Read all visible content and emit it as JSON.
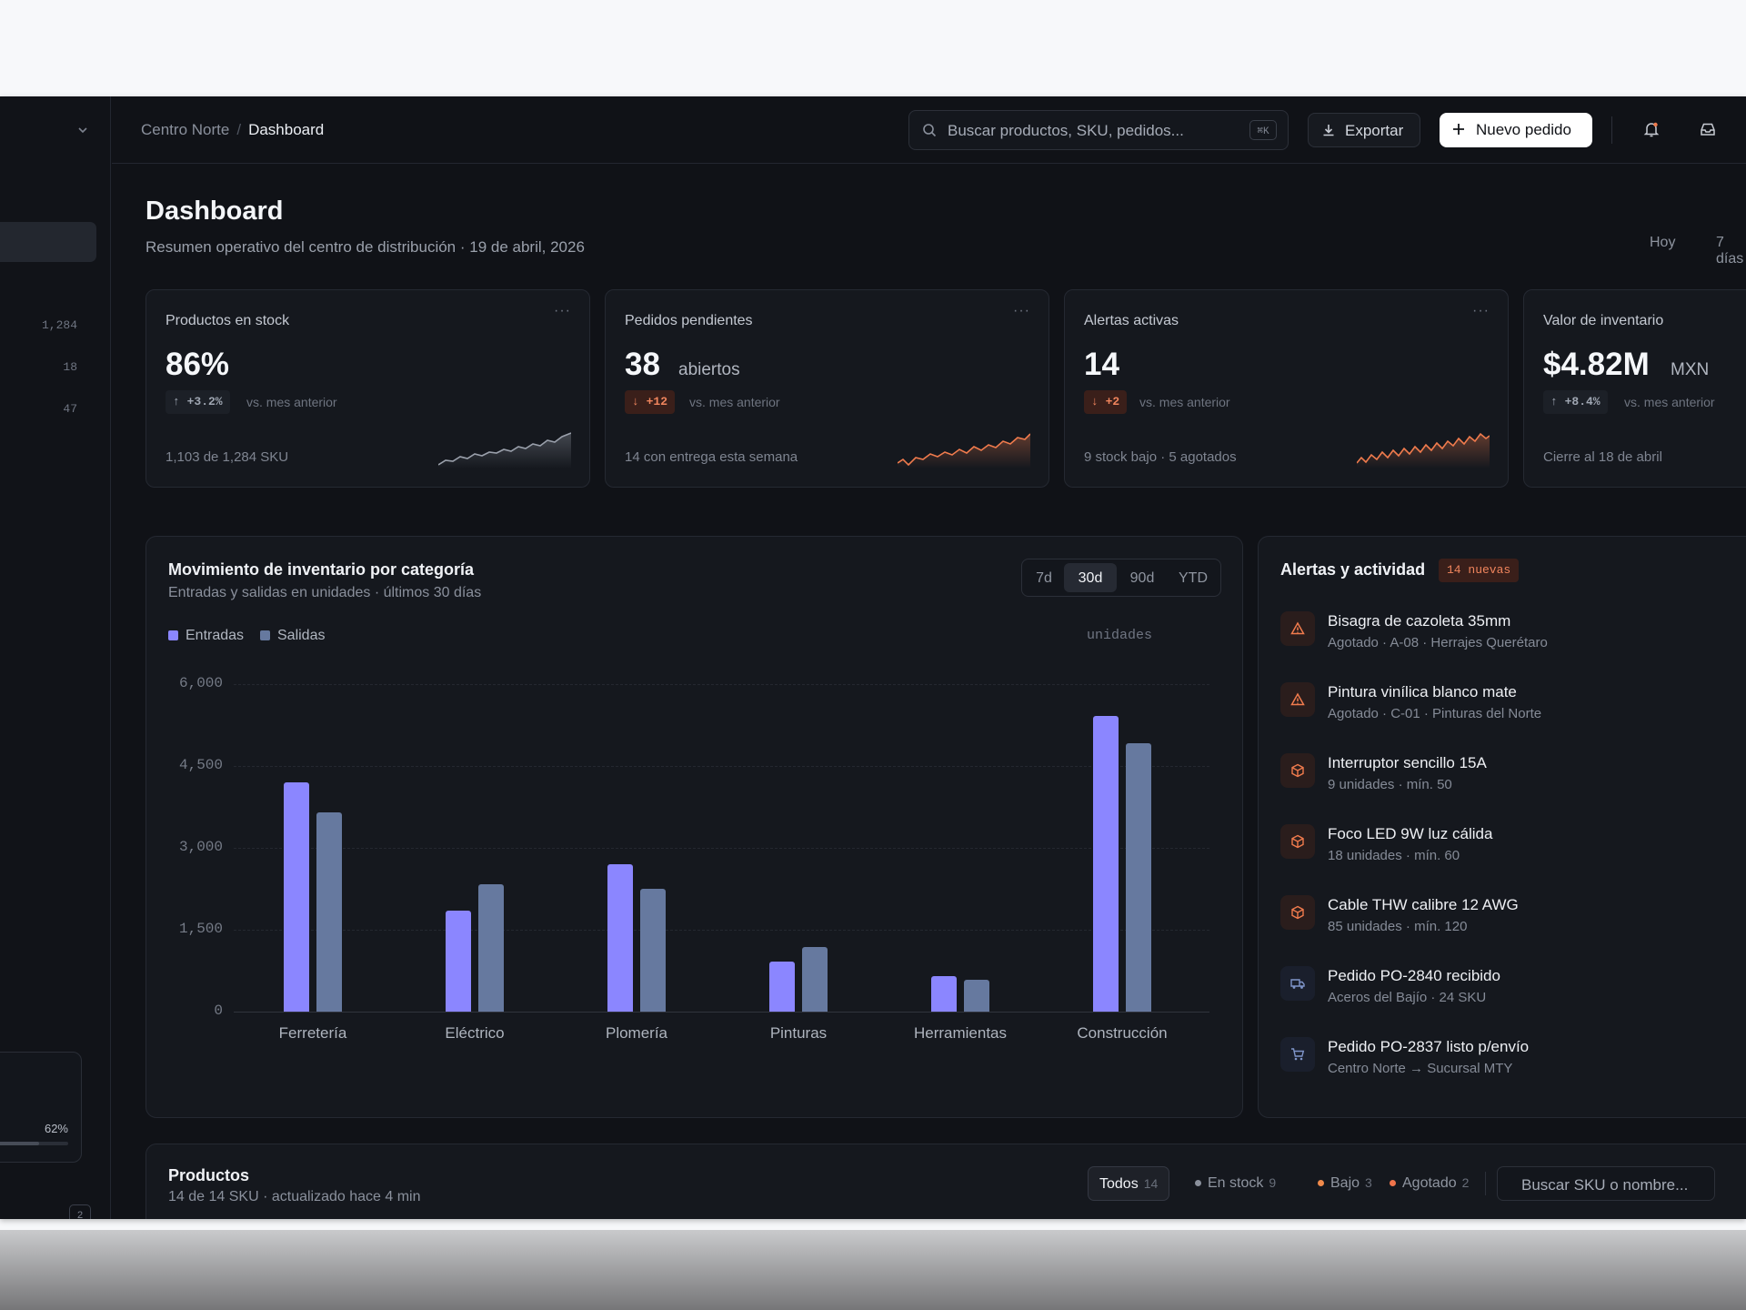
{
  "breadcrumb": {
    "parent": "Centro Norte",
    "separator": "/",
    "current": "Dashboard"
  },
  "search": {
    "placeholder": "Buscar productos, SKU, pedidos...",
    "shortcut": "⌘K"
  },
  "toolbar": {
    "export_label": "Exportar",
    "new_order_label": "Nuevo pedido"
  },
  "sidebar": {
    "counts": [
      "1,284",
      "18",
      "47"
    ],
    "card_percent": "62%",
    "card_progress": 0.62,
    "badge": "2"
  },
  "page": {
    "title": "Dashboard",
    "subtitle": "Resumen operativo del centro de distribución · 19 de abril, 2026"
  },
  "range": {
    "today": "Hoy",
    "week": "7 días"
  },
  "kpis": [
    {
      "label": "Productos en stock",
      "value": "86%",
      "unit": "",
      "delta": "↑ +3.2%",
      "trend": "up",
      "vs": "vs. mes anterior",
      "footer": "1,103 de 1,284 SKU",
      "color": "#9aa0ab"
    },
    {
      "label": "Pedidos pendientes",
      "value": "38",
      "unit": "abiertos",
      "delta": "↓ +12",
      "trend": "bad",
      "vs": "vs. mes anterior",
      "footer": "14 con entrega esta semana",
      "color": "#f07b4d"
    },
    {
      "label": "Alertas activas",
      "value": "14",
      "unit": "",
      "delta": "↓ +2",
      "trend": "bad",
      "vs": "vs. mes anterior",
      "footer": "9 stock bajo · 5 agotados",
      "color": "#f07b4d"
    },
    {
      "label": "Valor de inventario",
      "value": "$4.82M",
      "unit": "MXN",
      "delta": "↑ +8.4%",
      "trend": "up",
      "vs": "vs. mes anterior",
      "footer": "Cierre al 18 de abril",
      "color": "#9aa0ab"
    }
  ],
  "chart": {
    "title": "Movimiento de inventario por categoría",
    "subtitle": "Entradas y salidas en unidades · últimos 30 días",
    "periods": [
      "7d",
      "30d",
      "90d",
      "YTD"
    ],
    "active_period": "30d",
    "units_label": "unidades"
  },
  "chart_data": {
    "type": "bar",
    "categories": [
      "Ferretería",
      "Eléctrico",
      "Plomería",
      "Pinturas",
      "Herramientas",
      "Construcción"
    ],
    "series": [
      {
        "name": "Entradas",
        "values": [
          4200,
          1850,
          2700,
          920,
          650,
          5420
        ],
        "color": "#8b86ff"
      },
      {
        "name": "Salidas",
        "values": [
          3650,
          2330,
          2250,
          1180,
          580,
          4920
        ],
        "color": "#66799f"
      }
    ],
    "yticks": [
      "6,000",
      "4,500",
      "3,000",
      "1,500",
      "0"
    ],
    "ylim": [
      0,
      6000
    ],
    "ylabel": "unidades",
    "grid": true,
    "legend": "top-left"
  },
  "alerts": {
    "title": "Alertas y actividad",
    "badge": "14 nuevas",
    "items": [
      {
        "name": "Bisagra de cazoleta 35mm",
        "meta": "Agotado · A-08 · Herrajes Querétaro",
        "icon": "warning-icon",
        "tone": "orange"
      },
      {
        "name": "Pintura vinílica blanco mate",
        "meta": "Agotado · C-01 · Pinturas del Norte",
        "icon": "warning-icon",
        "tone": "orange"
      },
      {
        "name": "Interruptor sencillo 15A",
        "meta": "9 unidades · mín. 50",
        "icon": "box-icon",
        "tone": "orange"
      },
      {
        "name": "Foco LED 9W luz cálida",
        "meta": "18 unidades · mín. 60",
        "icon": "box-icon",
        "tone": "orange"
      },
      {
        "name": "Cable THW calibre 12 AWG",
        "meta": "85 unidades · mín. 120",
        "icon": "box-icon",
        "tone": "orange"
      },
      {
        "name": "Pedido PO-2840 recibido",
        "meta": "Aceros del Bajío · 24 SKU",
        "icon": "truck-icon",
        "tone": "blue"
      },
      {
        "name": "Pedido PO-2837 listo p/envío",
        "meta": "Centro Norte → Sucursal MTY",
        "icon": "cart-icon",
        "tone": "blue"
      }
    ]
  },
  "products": {
    "title": "Productos",
    "subtitle": "14 de 14 SKU · actualizado hace 4 min",
    "tabs": [
      {
        "label": "Todos",
        "count": "14"
      },
      {
        "label": "En stock",
        "count": "9"
      },
      {
        "label": "Bajo",
        "count": "3"
      },
      {
        "label": "Agotado",
        "count": "2"
      }
    ],
    "search_placeholder": "Buscar SKU o nombre..."
  }
}
